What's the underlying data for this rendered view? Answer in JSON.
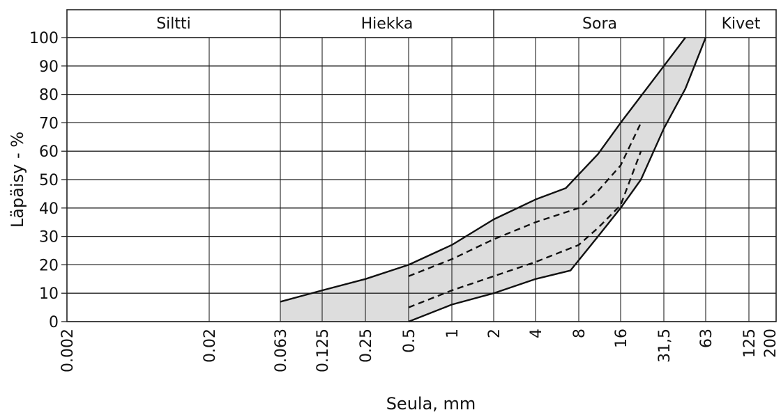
{
  "chart_data": {
    "type": "area",
    "title": "",
    "xlabel": "Seula, mm",
    "ylabel": "Läpäisy - %",
    "x_scale": "log",
    "ylim": [
      0,
      100
    ],
    "grid": true,
    "zones": [
      {
        "name": "Siltti",
        "from": 0.002,
        "to": 0.063
      },
      {
        "name": "Hiekka",
        "from": 0.063,
        "to": 2
      },
      {
        "name": "Sora",
        "from": 2,
        "to": 63
      },
      {
        "name": "Kivet",
        "from": 63,
        "to": 200
      }
    ],
    "x_ticks": [
      {
        "value": 0.002,
        "label": "0.002"
      },
      {
        "value": 0.02,
        "label": "0.02"
      },
      {
        "value": 0.063,
        "label": "0.063"
      },
      {
        "value": 0.125,
        "label": "0.125"
      },
      {
        "value": 0.25,
        "label": "0.25"
      },
      {
        "value": 0.5,
        "label": "0.5"
      },
      {
        "value": 1,
        "label": "1"
      },
      {
        "value": 2,
        "label": "2"
      },
      {
        "value": 4,
        "label": "4"
      },
      {
        "value": 8,
        "label": "8"
      },
      {
        "value": 16,
        "label": "16"
      },
      {
        "value": 31.5,
        "label": "31,5"
      },
      {
        "value": 63,
        "label": "63"
      },
      {
        "value": 125,
        "label": "125"
      },
      {
        "value": 200,
        "label": "200"
      }
    ],
    "y_ticks": [
      0,
      10,
      20,
      30,
      40,
      50,
      60,
      70,
      80,
      90,
      100
    ],
    "series": [
      {
        "style": "solid",
        "x": [
          0.063,
          0.125,
          0.25,
          0.5,
          1,
          2,
          4,
          6.5,
          11,
          16,
          31.5,
          45
        ],
        "y": [
          7,
          11,
          15,
          20,
          27,
          36,
          43,
          47,
          59,
          70,
          90,
          100
        ]
      },
      {
        "style": "solid",
        "x": [
          0.5,
          1,
          2,
          4,
          7,
          11,
          16,
          22,
          31.5,
          45,
          63
        ],
        "y": [
          0,
          6,
          10,
          15,
          18,
          30,
          40,
          50,
          68,
          82,
          100
        ]
      },
      {
        "style": "dashed",
        "x": [
          0.5,
          1,
          2,
          4,
          8,
          11,
          16,
          22
        ],
        "y": [
          16,
          22,
          29,
          35,
          40,
          46,
          55,
          70
        ]
      },
      {
        "style": "dashed",
        "x": [
          0.5,
          1,
          2,
          4,
          8,
          11,
          16,
          22
        ],
        "y": [
          5,
          11,
          16,
          21,
          27,
          33,
          41,
          60
        ]
      }
    ],
    "colors": {
      "band": "#dddddd",
      "line": "#111111",
      "grid": "#222222"
    }
  }
}
